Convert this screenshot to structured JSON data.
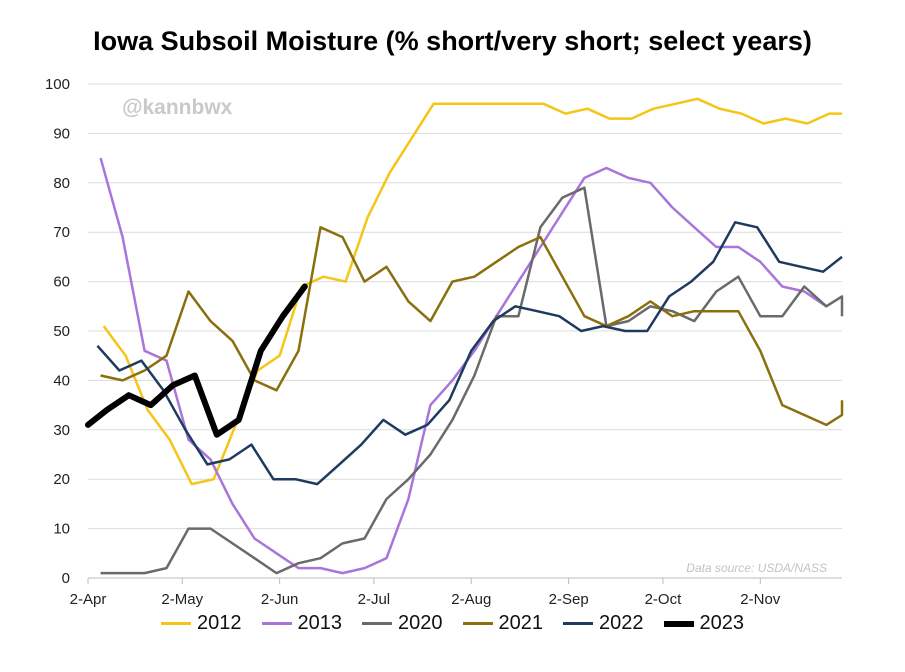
{
  "chart_data": {
    "type": "line",
    "title": "Iowa Subsoil Moisture (% short/very short; select years)",
    "watermark": "@kannbwx",
    "source": "Data source: USDA/NASS",
    "xlabel": "",
    "ylabel": "",
    "ylim": [
      0,
      100
    ],
    "y_ticks": [
      0,
      10,
      20,
      30,
      40,
      50,
      60,
      70,
      80,
      90,
      100
    ],
    "x_domain": [
      0,
      240
    ],
    "x_ticks": [
      {
        "label": "2-Apr",
        "day": 0
      },
      {
        "label": "2-May",
        "day": 30
      },
      {
        "label": "2-Jun",
        "day": 61
      },
      {
        "label": "2-Jul",
        "day": 91
      },
      {
        "label": "2-Aug",
        "day": 122
      },
      {
        "label": "2-Sep",
        "day": 153
      },
      {
        "label": "2-Oct",
        "day": 183
      },
      {
        "label": "2-Nov",
        "day": 214
      }
    ],
    "grid": true,
    "legend_position": "bottom",
    "series": [
      {
        "name": "2012",
        "color": "#F5C518",
        "width": 2.5,
        "points": [
          [
            5,
            51
          ],
          [
            12,
            45
          ],
          [
            19,
            34
          ],
          [
            26,
            28
          ],
          [
            33,
            19
          ],
          [
            40,
            20
          ],
          [
            47,
            31
          ],
          [
            54,
            42
          ],
          [
            61,
            45
          ],
          [
            68,
            59
          ],
          [
            75,
            61
          ],
          [
            82,
            60
          ],
          [
            89,
            73
          ],
          [
            96,
            82
          ],
          [
            103,
            89
          ],
          [
            110,
            96
          ],
          [
            117,
            96
          ],
          [
            124,
            96
          ],
          [
            131,
            96
          ],
          [
            138,
            96
          ],
          [
            145,
            96
          ],
          [
            152,
            94
          ],
          [
            159,
            95
          ],
          [
            166,
            93
          ],
          [
            173,
            93
          ],
          [
            180,
            95
          ],
          [
            187,
            96
          ],
          [
            194,
            97
          ],
          [
            201,
            95
          ],
          [
            208,
            94
          ],
          [
            215,
            92
          ],
          [
            222,
            93
          ],
          [
            229,
            92
          ],
          [
            236,
            94
          ],
          [
            243,
            94
          ]
        ]
      },
      {
        "name": "2013",
        "color": "#A876DB",
        "width": 2.5,
        "points": [
          [
            4,
            85
          ],
          [
            11,
            69
          ],
          [
            18,
            46
          ],
          [
            25,
            44
          ],
          [
            32,
            28
          ],
          [
            39,
            24
          ],
          [
            46,
            15
          ],
          [
            53,
            8
          ],
          [
            60,
            5
          ],
          [
            67,
            2
          ],
          [
            74,
            2
          ],
          [
            81,
            1
          ],
          [
            88,
            2
          ],
          [
            95,
            4
          ],
          [
            102,
            16
          ],
          [
            109,
            35
          ],
          [
            116,
            40
          ],
          [
            123,
            46
          ],
          [
            130,
            53
          ],
          [
            137,
            60
          ],
          [
            144,
            67
          ],
          [
            151,
            74
          ],
          [
            158,
            81
          ],
          [
            165,
            83
          ],
          [
            172,
            81
          ],
          [
            179,
            80
          ],
          [
            186,
            75
          ],
          [
            193,
            71
          ],
          [
            200,
            67
          ],
          [
            207,
            67
          ],
          [
            214,
            64
          ],
          [
            221,
            59
          ],
          [
            228,
            58
          ],
          [
            235,
            55
          ]
        ]
      },
      {
        "name": "2020",
        "color": "#6A6A6A",
        "width": 2.5,
        "points": [
          [
            4,
            1
          ],
          [
            11,
            1
          ],
          [
            18,
            1
          ],
          [
            25,
            2
          ],
          [
            32,
            10
          ],
          [
            39,
            10
          ],
          [
            46,
            7
          ],
          [
            53,
            4
          ],
          [
            60,
            1
          ],
          [
            67,
            3
          ],
          [
            74,
            4
          ],
          [
            81,
            7
          ],
          [
            88,
            8
          ],
          [
            95,
            16
          ],
          [
            102,
            20
          ],
          [
            109,
            25
          ],
          [
            116,
            32
          ],
          [
            123,
            41
          ],
          [
            130,
            53
          ],
          [
            137,
            53
          ],
          [
            144,
            71
          ],
          [
            151,
            77
          ],
          [
            158,
            79
          ],
          [
            165,
            51
          ],
          [
            172,
            52
          ],
          [
            179,
            55
          ],
          [
            186,
            54
          ],
          [
            193,
            52
          ],
          [
            200,
            58
          ],
          [
            207,
            61
          ],
          [
            214,
            53
          ],
          [
            221,
            53
          ],
          [
            228,
            59
          ],
          [
            235,
            55
          ],
          [
            242,
            57
          ],
          [
            249,
            53
          ]
        ]
      },
      {
        "name": "2021",
        "color": "#8B6F0E",
        "width": 2.5,
        "points": [
          [
            4,
            41
          ],
          [
            11,
            40
          ],
          [
            18,
            42
          ],
          [
            25,
            45
          ],
          [
            32,
            58
          ],
          [
            39,
            52
          ],
          [
            46,
            48
          ],
          [
            53,
            40
          ],
          [
            60,
            38
          ],
          [
            67,
            46
          ],
          [
            74,
            71
          ],
          [
            81,
            69
          ],
          [
            88,
            60
          ],
          [
            95,
            63
          ],
          [
            102,
            56
          ],
          [
            109,
            52
          ],
          [
            116,
            60
          ],
          [
            123,
            61
          ],
          [
            130,
            64
          ],
          [
            137,
            67
          ],
          [
            144,
            69
          ],
          [
            151,
            61
          ],
          [
            158,
            53
          ],
          [
            165,
            51
          ],
          [
            172,
            53
          ],
          [
            179,
            56
          ],
          [
            186,
            53
          ],
          [
            193,
            54
          ],
          [
            200,
            54
          ],
          [
            207,
            54
          ],
          [
            214,
            46
          ],
          [
            221,
            35
          ],
          [
            228,
            33
          ],
          [
            235,
            31
          ],
          [
            242,
            33
          ],
          [
            249,
            36
          ]
        ]
      },
      {
        "name": "2022",
        "color": "#1F3A5F",
        "width": 2.5,
        "points": [
          [
            3,
            47
          ],
          [
            10,
            42
          ],
          [
            17,
            44
          ],
          [
            24,
            38
          ],
          [
            31,
            30
          ],
          [
            38,
            23
          ],
          [
            45,
            24
          ],
          [
            52,
            27
          ],
          [
            59,
            20
          ],
          [
            66,
            20
          ],
          [
            73,
            19
          ],
          [
            80,
            23
          ],
          [
            87,
            27
          ],
          [
            94,
            32
          ],
          [
            101,
            29
          ],
          [
            108,
            31
          ],
          [
            115,
            36
          ],
          [
            122,
            46
          ],
          [
            129,
            52
          ],
          [
            136,
            55
          ],
          [
            143,
            54
          ],
          [
            150,
            53
          ],
          [
            157,
            50
          ],
          [
            164,
            51
          ],
          [
            171,
            50
          ],
          [
            178,
            50
          ],
          [
            185,
            57
          ],
          [
            192,
            60
          ],
          [
            199,
            64
          ],
          [
            206,
            72
          ],
          [
            213,
            71
          ],
          [
            220,
            64
          ],
          [
            227,
            63
          ],
          [
            234,
            62
          ],
          [
            241,
            65
          ]
        ]
      },
      {
        "name": "2023",
        "color": "#000000",
        "width": 6,
        "points": [
          [
            -1,
            31
          ],
          [
            6,
            34
          ],
          [
            13,
            37
          ],
          [
            20,
            35
          ],
          [
            27,
            39
          ],
          [
            34,
            41
          ],
          [
            41,
            29
          ],
          [
            48,
            32
          ],
          [
            55,
            46
          ],
          [
            62,
            53
          ],
          [
            69,
            59
          ]
        ]
      }
    ]
  }
}
